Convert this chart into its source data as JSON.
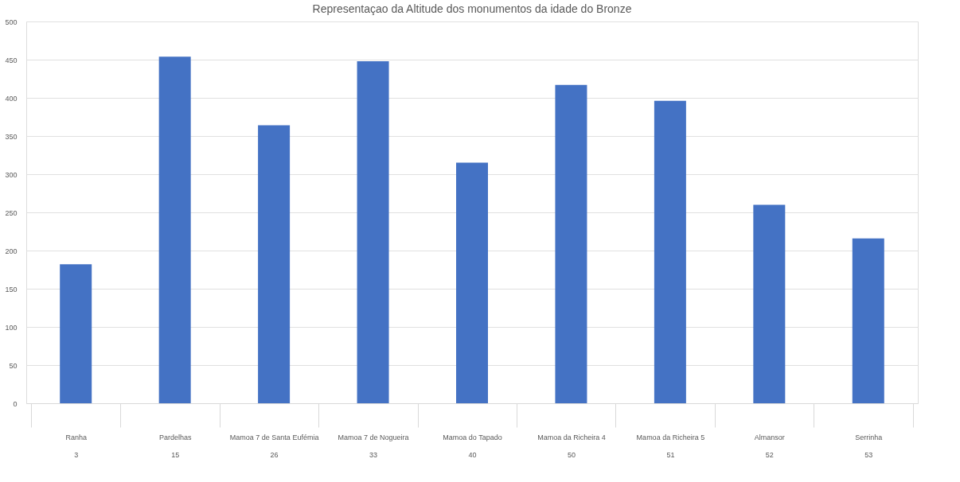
{
  "chart_data": {
    "type": "bar",
    "title": "Representaçao da Altitude dos monumentos da idade do Bronze",
    "categories": [
      "Ranha\n3",
      "Pardelhas\n15",
      "Mamoa 7 de Santa Eufémia\n26",
      "Mamoa 7 de Nogueira\n33",
      "Mamoa do Tapado\n40",
      "Mamoa da Richeira 4\n50",
      "Mamoa da Richeira 5\n51",
      "Almansor\n52",
      "Serrinha\n53"
    ],
    "values": [
      182,
      454,
      364,
      448,
      315,
      417,
      396,
      260,
      216
    ],
    "color": "#4472c4",
    "ylim": [
      0,
      500
    ],
    "yticks": [
      0,
      50,
      100,
      150,
      200,
      250,
      300,
      350,
      400,
      450,
      500
    ],
    "grid": "y"
  }
}
